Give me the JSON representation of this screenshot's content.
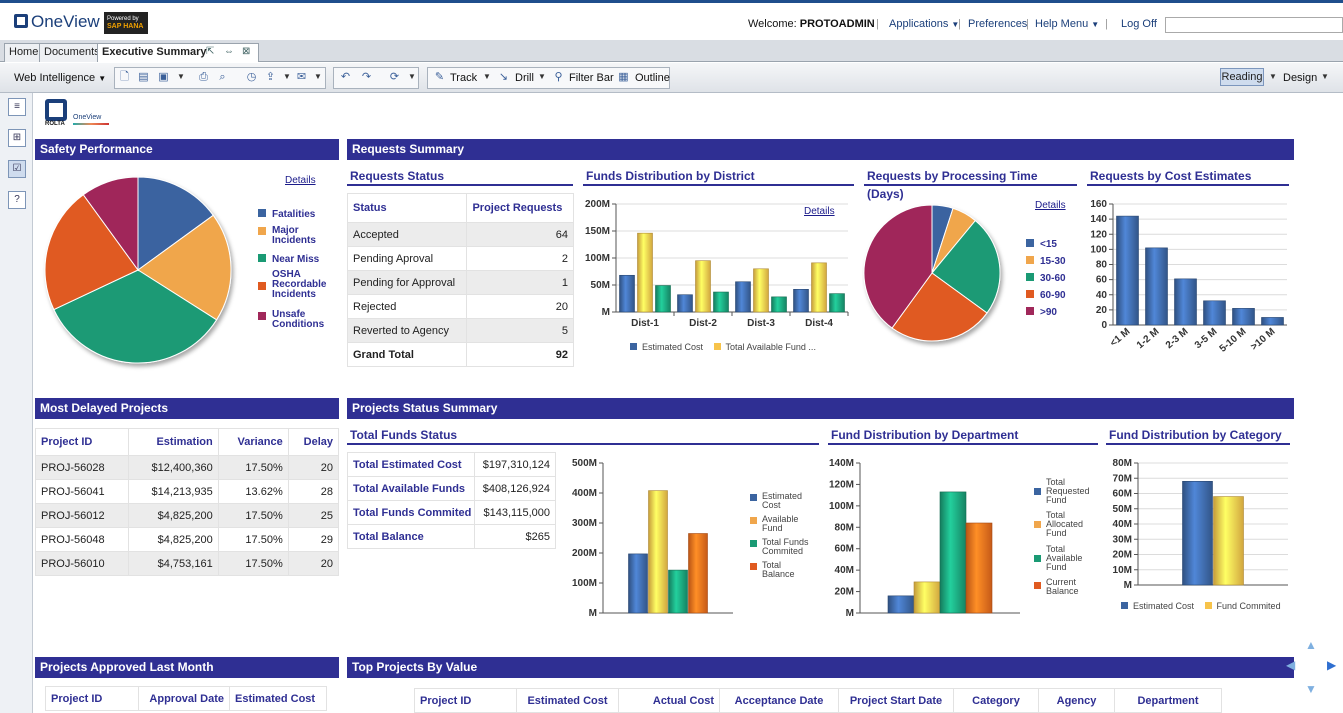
{
  "app": {
    "logo_text": "OneView",
    "powered_by": "Powered by",
    "hana_text": "SAP HANA",
    "welcome_label": "Welcome:",
    "user": "PROTOADMIN",
    "applications": "Applications",
    "preferences": "Preferences",
    "help_menu": "Help Menu",
    "log_off": "Log Off"
  },
  "tabs": [
    "Home",
    "Documents",
    "Executive Summary"
  ],
  "toolbar": {
    "web_intelligence": "Web Intelligence",
    "track": "Track",
    "drill": "Drill",
    "filter_bar": "Filter Bar",
    "outline": "Outline",
    "reading": "Reading",
    "design": "Design"
  },
  "report_logo": {
    "company": "ROLTA",
    "product": "OneView"
  },
  "safety": {
    "title": "Safety Performance",
    "details": "Details",
    "legend": [
      "Fatalities",
      "Major Incidents",
      "Near Miss",
      "OSHA Recordable Incidents",
      "Unsafe Conditions"
    ],
    "colors": [
      "#3b64a0",
      "#f0a64c",
      "#1a9a74",
      "#e05a20",
      "#a0285a"
    ]
  },
  "requests_summary": {
    "title": "Requests Summary"
  },
  "requests_status": {
    "title": "Requests Status",
    "headers": [
      "Status",
      "Project Requests"
    ],
    "rows": [
      [
        "Accepted",
        "64"
      ],
      [
        "Pending Aproval",
        "2"
      ],
      [
        "Pending for Approval",
        "1"
      ],
      [
        "Rejected",
        "20"
      ],
      [
        "Reverted to Agency",
        "5"
      ]
    ],
    "total": [
      "Grand Total",
      "92"
    ]
  },
  "funds_district": {
    "title": "Funds Distribution by District",
    "details": "Details",
    "legend": [
      "Estimated Cost",
      "Total Available Fund ..."
    ]
  },
  "processing_time": {
    "title": "Requests by Processing Time (Days)",
    "details": "Details",
    "legend": [
      "<15",
      "15-30",
      "30-60",
      "60-90",
      ">90"
    ],
    "colors": [
      "#3b64a0",
      "#f0a64c",
      "#1a9a74",
      "#e05a20",
      "#a0285a"
    ]
  },
  "cost_estimates": {
    "title": "Requests by Cost Estimates"
  },
  "delayed": {
    "title": "Most Delayed Projects",
    "headers": [
      "Project ID",
      "Estimation",
      "Variance",
      "Delay"
    ],
    "rows": [
      [
        "PROJ-56028",
        "$12,400,360",
        "17.50%",
        "20"
      ],
      [
        "PROJ-56041",
        "$14,213,935",
        "13.62%",
        "28"
      ],
      [
        "PROJ-56012",
        "$4,825,200",
        "17.50%",
        "25"
      ],
      [
        "PROJ-56048",
        "$4,825,200",
        "17.50%",
        "29"
      ],
      [
        "PROJ-56010",
        "$4,753,161",
        "17.50%",
        "20"
      ]
    ]
  },
  "projects_status": {
    "title": "Projects Status Summary"
  },
  "total_funds": {
    "title": "Total Funds Status",
    "rows": [
      [
        "Total Estimated Cost",
        "$197,310,124"
      ],
      [
        "Total Available Funds",
        "$408,126,924"
      ],
      [
        "Total Funds Commited",
        "$143,115,000"
      ],
      [
        "Total Balance",
        "$265"
      ]
    ],
    "legend": [
      "Estimated Cost",
      "Available Fund",
      "Total Funds Commited",
      "Total Balance"
    ]
  },
  "dept": {
    "title": "Fund Distribution by Department",
    "legend": [
      "Total Requested Fund",
      "Total Allocated Fund",
      "Total Available Fund",
      "Current Balance"
    ]
  },
  "category": {
    "title": "Fund Distribution by Category",
    "legend": [
      "Estimated Cost",
      "Fund Commited"
    ]
  },
  "approved": {
    "title": "Projects Approved Last Month",
    "headers": [
      "Project ID",
      "Approval Date",
      "Estimated Cost"
    ]
  },
  "top_projects": {
    "title": "Top Projects By Value",
    "headers": [
      "Project ID",
      "Estimated Cost",
      "Actual Cost",
      "Acceptance Date",
      "Project Start Date",
      "Category",
      "Agency",
      "Department"
    ]
  },
  "chart_data": [
    {
      "type": "pie",
      "title": "Safety Performance",
      "categories": [
        "Fatalities",
        "Major Incidents",
        "Near Miss",
        "OSHA Recordable Incidents",
        "Unsafe Conditions"
      ],
      "values": [
        15,
        19,
        34,
        22,
        10
      ]
    },
    {
      "type": "bar",
      "title": "Funds Distribution by District",
      "categories": [
        "Dist-1",
        "Dist-2",
        "Dist-3",
        "Dist-4"
      ],
      "yticks": [
        "M",
        "50M",
        "100M",
        "150M",
        "200M"
      ],
      "ylim": [
        0,
        200
      ],
      "series": [
        {
          "name": "Estimated Cost",
          "values": [
            68,
            32,
            56,
            42
          ],
          "color": "#3b64a0"
        },
        {
          "name": "Total Available Fund ...",
          "values": [
            146,
            95,
            80,
            91
          ],
          "color": "#f7c34a"
        },
        {
          "name": "",
          "values": [
            49,
            37,
            28,
            34
          ],
          "color": "#1a9a74"
        }
      ]
    },
    {
      "type": "pie",
      "title": "Requests by Processing Time (Days)",
      "categories": [
        "<15",
        "15-30",
        "30-60",
        "60-90",
        ">90"
      ],
      "values": [
        5,
        6,
        24,
        25,
        40
      ]
    },
    {
      "type": "bar",
      "title": "Requests by Cost Estimates",
      "categories": [
        "<1 M",
        "1-2 M",
        "2-3 M",
        "3-5 M",
        "5-10 M",
        ">10 M"
      ],
      "yticks": [
        "0",
        "20",
        "40",
        "60",
        "80",
        "100",
        "120",
        "140",
        "160"
      ],
      "ylim": [
        0,
        160
      ],
      "series": [
        {
          "name": "",
          "values": [
            144,
            102,
            61,
            32,
            22,
            10
          ],
          "color": "#3b64a0"
        }
      ]
    },
    {
      "type": "bar",
      "title": "Total Funds Status",
      "categories": [
        ""
      ],
      "yticks": [
        "M",
        "100M",
        "200M",
        "300M",
        "400M",
        "500M"
      ],
      "ylim": [
        0,
        500
      ],
      "series": [
        {
          "name": "Estimated Cost",
          "values": [
            197
          ],
          "color": "#3b64a0"
        },
        {
          "name": "Available Fund",
          "values": [
            408
          ],
          "color": "#f7c34a"
        },
        {
          "name": "Total Funds Commited",
          "values": [
            143
          ],
          "color": "#1a9a74"
        },
        {
          "name": "Total Balance",
          "values": [
            265
          ],
          "color": "#e96a1c"
        }
      ]
    },
    {
      "type": "bar",
      "title": "Fund Distribution by Department",
      "categories": [
        ""
      ],
      "yticks": [
        "M",
        "20M",
        "40M",
        "60M",
        "80M",
        "100M",
        "120M",
        "140M"
      ],
      "ylim": [
        0,
        140
      ],
      "series": [
        {
          "name": "Total Requested Fund",
          "values": [
            16
          ],
          "color": "#3b64a0"
        },
        {
          "name": "Total Allocated Fund",
          "values": [
            29
          ],
          "color": "#f7c34a"
        },
        {
          "name": "Total Available Fund",
          "values": [
            113
          ],
          "color": "#1a9a74"
        },
        {
          "name": "Current Balance",
          "values": [
            84
          ],
          "color": "#e96a1c"
        }
      ]
    },
    {
      "type": "bar",
      "title": "Fund Distribution by Category",
      "categories": [
        ""
      ],
      "yticks": [
        "M",
        "10M",
        "20M",
        "30M",
        "40M",
        "50M",
        "60M",
        "70M",
        "80M"
      ],
      "ylim": [
        0,
        80
      ],
      "series": [
        {
          "name": "Estimated Cost",
          "values": [
            68
          ],
          "color": "#3b64a0"
        },
        {
          "name": "Fund Commited",
          "values": [
            58
          ],
          "color": "#f7c34a"
        }
      ]
    }
  ]
}
